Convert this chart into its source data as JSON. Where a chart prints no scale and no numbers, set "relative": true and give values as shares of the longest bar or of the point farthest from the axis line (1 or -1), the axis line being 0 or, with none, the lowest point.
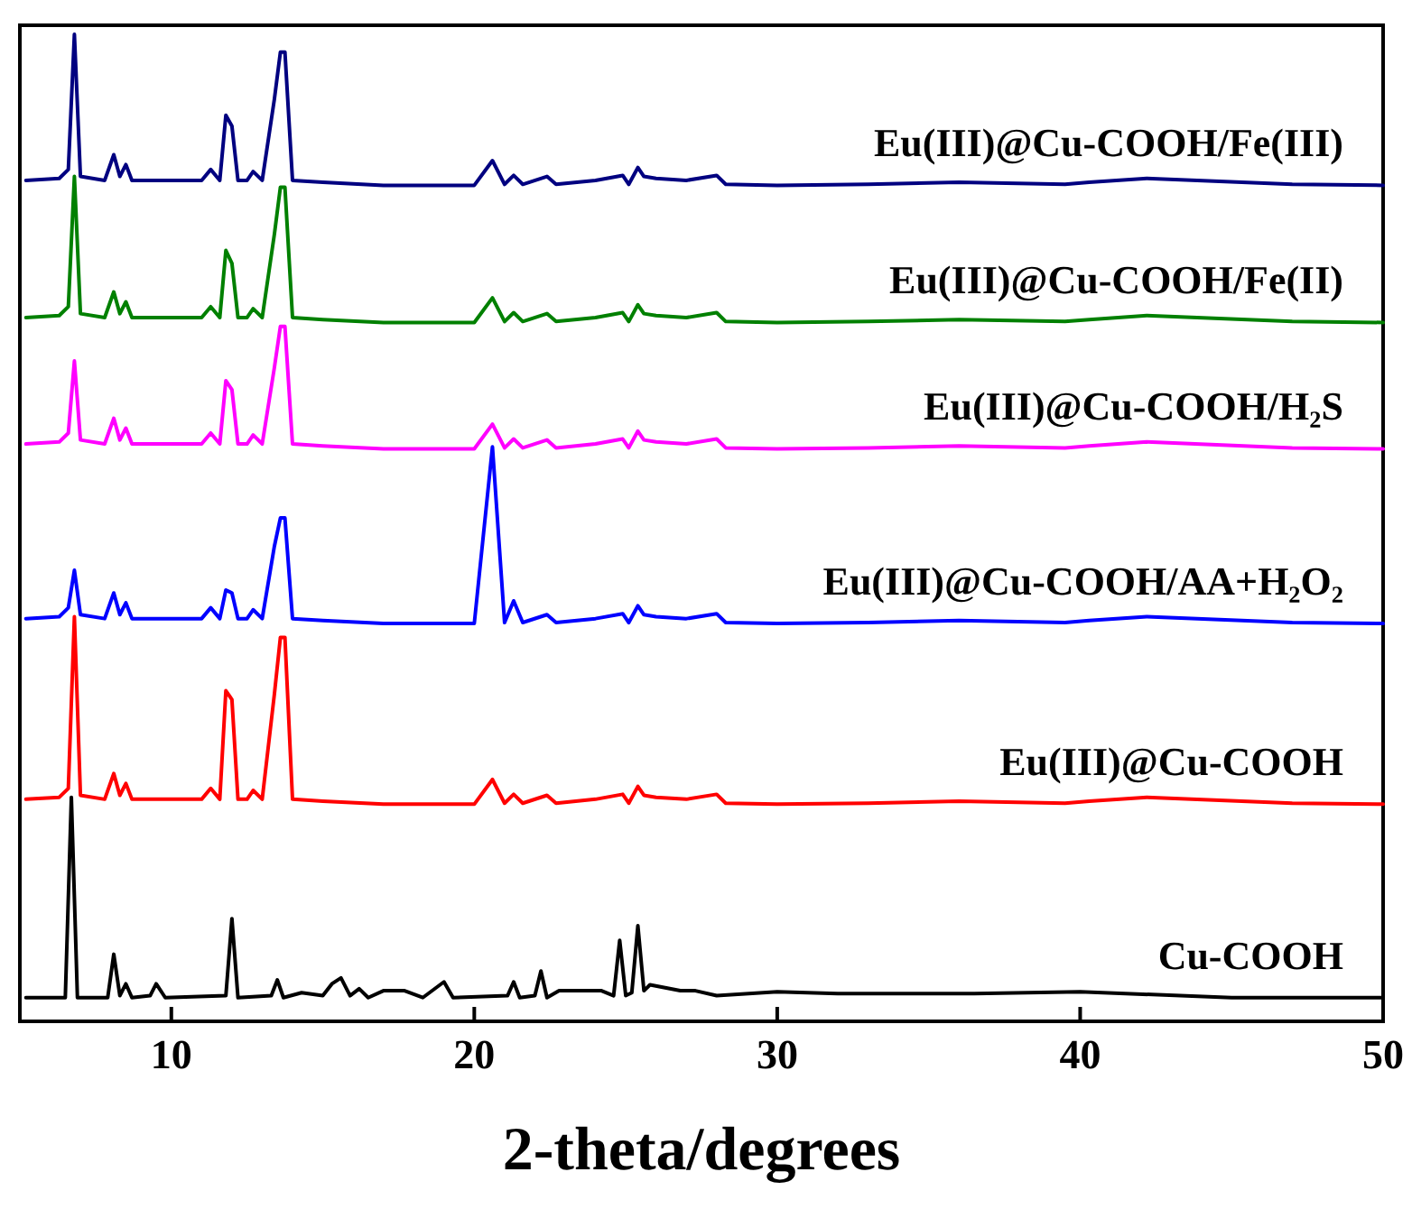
{
  "chart_data": {
    "type": "line",
    "relative": true,
    "xlabel": "2-theta/degrees",
    "xlim": [
      5,
      50
    ],
    "xticks": [
      10,
      20,
      30,
      40,
      50
    ],
    "series": [
      {
        "name": "Eu(III)@Cu-COOH/Fe(III)",
        "color": "#000080",
        "x": [
          5.2,
          6.3,
          6.6,
          6.8,
          7.0,
          7.8,
          8.1,
          8.3,
          8.5,
          8.7,
          10,
          11,
          11.3,
          11.6,
          11.8,
          12.0,
          12.2,
          12.5,
          12.7,
          13.0,
          13.4,
          13.6,
          13.75,
          14.0,
          15,
          17,
          20,
          20.6,
          21.0,
          21.3,
          21.6,
          22.4,
          22.7,
          24,
          24.9,
          25.1,
          25.4,
          25.6,
          26,
          27,
          28,
          28.3,
          30,
          33,
          36,
          39.5,
          40.3,
          42.2,
          47,
          50
        ],
        "values": [
          0.852,
          0.854,
          0.863,
          1.0,
          0.856,
          0.852,
          0.878,
          0.856,
          0.868,
          0.852,
          0.852,
          0.852,
          0.863,
          0.852,
          0.918,
          0.907,
          0.852,
          0.852,
          0.861,
          0.852,
          0.934,
          0.982,
          0.982,
          0.852,
          0.85,
          0.847,
          0.847,
          0.872,
          0.848,
          0.857,
          0.848,
          0.856,
          0.848,
          0.852,
          0.857,
          0.848,
          0.865,
          0.856,
          0.854,
          0.852,
          0.857,
          0.848,
          0.847,
          0.848,
          0.85,
          0.848,
          0.85,
          0.854,
          0.848,
          0.847
        ]
      },
      {
        "name": "Eu(III)@Cu-COOH/Fe(II)",
        "color": "#008000",
        "x": [
          5.2,
          6.3,
          6.6,
          6.8,
          7.0,
          7.8,
          8.1,
          8.3,
          8.5,
          8.7,
          10,
          11,
          11.3,
          11.6,
          11.8,
          12.0,
          12.2,
          12.5,
          12.7,
          13.0,
          13.4,
          13.6,
          13.75,
          14.0,
          15,
          17,
          20,
          20.6,
          21.0,
          21.3,
          21.6,
          22.4,
          22.7,
          24,
          24.9,
          25.1,
          25.4,
          25.6,
          26,
          27,
          28,
          28.3,
          30,
          33,
          36,
          39.5,
          40.3,
          42.2,
          47,
          50
        ],
        "values": [
          0.713,
          0.715,
          0.724,
          0.856,
          0.717,
          0.713,
          0.739,
          0.717,
          0.729,
          0.713,
          0.713,
          0.713,
          0.724,
          0.713,
          0.781,
          0.768,
          0.713,
          0.713,
          0.722,
          0.713,
          0.797,
          0.845,
          0.845,
          0.713,
          0.711,
          0.708,
          0.708,
          0.733,
          0.709,
          0.718,
          0.709,
          0.717,
          0.709,
          0.713,
          0.718,
          0.709,
          0.726,
          0.717,
          0.715,
          0.713,
          0.718,
          0.709,
          0.708,
          0.709,
          0.711,
          0.709,
          0.711,
          0.715,
          0.709,
          0.708
        ]
      },
      {
        "name": "Eu(III)@Cu-COOH/H₂S",
        "color": "#ff00ff",
        "x": [
          5.2,
          6.3,
          6.6,
          6.8,
          7.0,
          7.8,
          8.1,
          8.3,
          8.5,
          8.7,
          10,
          11,
          11.3,
          11.6,
          11.8,
          12.0,
          12.2,
          12.5,
          12.7,
          13.0,
          13.4,
          13.6,
          13.75,
          14.0,
          15,
          17,
          20,
          20.6,
          21.0,
          21.3,
          21.6,
          22.4,
          22.7,
          24,
          24.9,
          25.1,
          25.4,
          25.6,
          26,
          27,
          28,
          28.3,
          30,
          33,
          36,
          39.5,
          40.3,
          42.2,
          47,
          50
        ],
        "values": [
          0.585,
          0.587,
          0.596,
          0.669,
          0.589,
          0.585,
          0.611,
          0.589,
          0.601,
          0.585,
          0.585,
          0.585,
          0.596,
          0.585,
          0.649,
          0.64,
          0.585,
          0.585,
          0.594,
          0.585,
          0.662,
          0.704,
          0.704,
          0.585,
          0.583,
          0.58,
          0.58,
          0.605,
          0.581,
          0.59,
          0.581,
          0.589,
          0.581,
          0.585,
          0.59,
          0.581,
          0.598,
          0.589,
          0.587,
          0.585,
          0.59,
          0.581,
          0.58,
          0.581,
          0.583,
          0.581,
          0.583,
          0.587,
          0.581,
          0.58
        ]
      },
      {
        "name": "Eu(III)@Cu-COOH/AA+H₂O₂",
        "color": "#0000ff",
        "x": [
          5.2,
          6.3,
          6.6,
          6.8,
          7.0,
          7.8,
          8.1,
          8.3,
          8.5,
          8.7,
          10,
          11,
          11.3,
          11.6,
          11.8,
          12.0,
          12.2,
          12.5,
          12.7,
          13.0,
          13.4,
          13.6,
          13.75,
          14.0,
          15,
          17,
          20,
          20.6,
          21.0,
          21.3,
          21.6,
          22.4,
          22.7,
          24,
          24.9,
          25.1,
          25.4,
          25.6,
          26,
          27,
          28,
          28.3,
          30,
          33,
          36,
          39.5,
          40.3,
          42.2,
          47,
          50
        ],
        "values": [
          0.408,
          0.41,
          0.419,
          0.457,
          0.412,
          0.408,
          0.434,
          0.412,
          0.424,
          0.408,
          0.408,
          0.408,
          0.419,
          0.408,
          0.437,
          0.434,
          0.408,
          0.408,
          0.417,
          0.408,
          0.481,
          0.51,
          0.51,
          0.408,
          0.406,
          0.403,
          0.403,
          0.582,
          0.404,
          0.426,
          0.404,
          0.412,
          0.404,
          0.408,
          0.413,
          0.404,
          0.421,
          0.412,
          0.41,
          0.408,
          0.413,
          0.404,
          0.403,
          0.404,
          0.406,
          0.404,
          0.406,
          0.41,
          0.404,
          0.403
        ]
      },
      {
        "name": "Eu(III)@Cu-COOH",
        "color": "#ff0000",
        "x": [
          5.2,
          6.3,
          6.6,
          6.8,
          7.0,
          7.8,
          8.1,
          8.3,
          8.5,
          8.7,
          10,
          11,
          11.3,
          11.6,
          11.8,
          12.0,
          12.2,
          12.5,
          12.7,
          13.0,
          13.4,
          13.6,
          13.75,
          14.0,
          15,
          17,
          20,
          20.6,
          21.0,
          21.3,
          21.6,
          22.4,
          22.7,
          24,
          24.9,
          25.1,
          25.4,
          25.6,
          26,
          27,
          28,
          28.3,
          30,
          33,
          36,
          39.5,
          40.3,
          42.2,
          47,
          50
        ],
        "values": [
          0.225,
          0.227,
          0.236,
          0.41,
          0.229,
          0.225,
          0.251,
          0.229,
          0.241,
          0.225,
          0.225,
          0.225,
          0.236,
          0.225,
          0.335,
          0.326,
          0.225,
          0.225,
          0.234,
          0.225,
          0.331,
          0.389,
          0.389,
          0.225,
          0.223,
          0.22,
          0.22,
          0.245,
          0.221,
          0.23,
          0.221,
          0.229,
          0.221,
          0.225,
          0.23,
          0.221,
          0.238,
          0.229,
          0.227,
          0.225,
          0.23,
          0.221,
          0.22,
          0.221,
          0.223,
          0.221,
          0.223,
          0.227,
          0.221,
          0.22
        ]
      },
      {
        "name": "Cu-COOH",
        "color": "#000000",
        "x": [
          5.2,
          6.5,
          6.7,
          6.9,
          7.9,
          8.1,
          8.3,
          8.5,
          8.7,
          9.3,
          9.5,
          9.8,
          11.8,
          12.0,
          12.2,
          13.3,
          13.5,
          13.7,
          14.3,
          15.0,
          15.3,
          15.6,
          15.9,
          16.2,
          16.5,
          17.0,
          17.7,
          18.3,
          19.0,
          19.3,
          21.1,
          21.3,
          21.5,
          22.0,
          22.2,
          22.4,
          22.8,
          24.2,
          24.6,
          24.8,
          25.0,
          25.2,
          25.4,
          25.6,
          25.8,
          26.8,
          27.3,
          28,
          30,
          32,
          36.5,
          40,
          45,
          50
        ],
        "values": [
          0.024,
          0.024,
          0.227,
          0.024,
          0.024,
          0.068,
          0.026,
          0.038,
          0.024,
          0.026,
          0.038,
          0.024,
          0.026,
          0.104,
          0.024,
          0.026,
          0.042,
          0.024,
          0.029,
          0.026,
          0.038,
          0.044,
          0.026,
          0.033,
          0.024,
          0.031,
          0.031,
          0.024,
          0.04,
          0.024,
          0.026,
          0.04,
          0.024,
          0.026,
          0.051,
          0.024,
          0.031,
          0.031,
          0.026,
          0.082,
          0.026,
          0.029,
          0.097,
          0.031,
          0.037,
          0.031,
          0.031,
          0.026,
          0.03,
          0.028,
          0.028,
          0.03,
          0.024,
          0.024
        ]
      }
    ]
  }
}
